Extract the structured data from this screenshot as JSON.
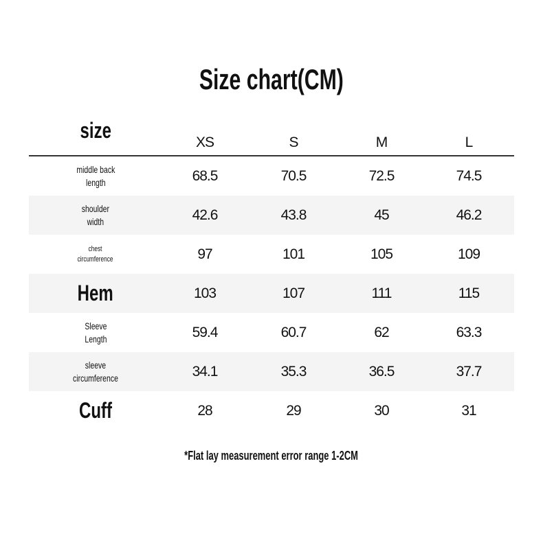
{
  "title": "Size chart(CM)",
  "header": {
    "label": "size",
    "sizes": [
      "XS",
      "S",
      "M",
      "L"
    ]
  },
  "rows": [
    {
      "label": "middle back length",
      "values": [
        "68.5",
        "70.5",
        "72.5",
        "74.5"
      ]
    },
    {
      "label": "shoulder width",
      "values": [
        "42.6",
        "43.8",
        "45",
        "46.2"
      ]
    },
    {
      "label": "chest circumference",
      "values": [
        "97",
        "101",
        "105",
        "109"
      ]
    },
    {
      "label": "Hem",
      "values": [
        "103",
        "107",
        "111",
        "115"
      ]
    },
    {
      "label": "Sleeve Length",
      "values": [
        "59.4",
        "60.7",
        "62",
        "63.3"
      ]
    },
    {
      "label": "sleeve circumference",
      "values": [
        "34.1",
        "35.3",
        "36.5",
        "37.7"
      ]
    },
    {
      "label": "Cuff",
      "values": [
        "28",
        "29",
        "30",
        "31"
      ]
    }
  ],
  "note": "*Flat lay measurement error range 1-2CM"
}
